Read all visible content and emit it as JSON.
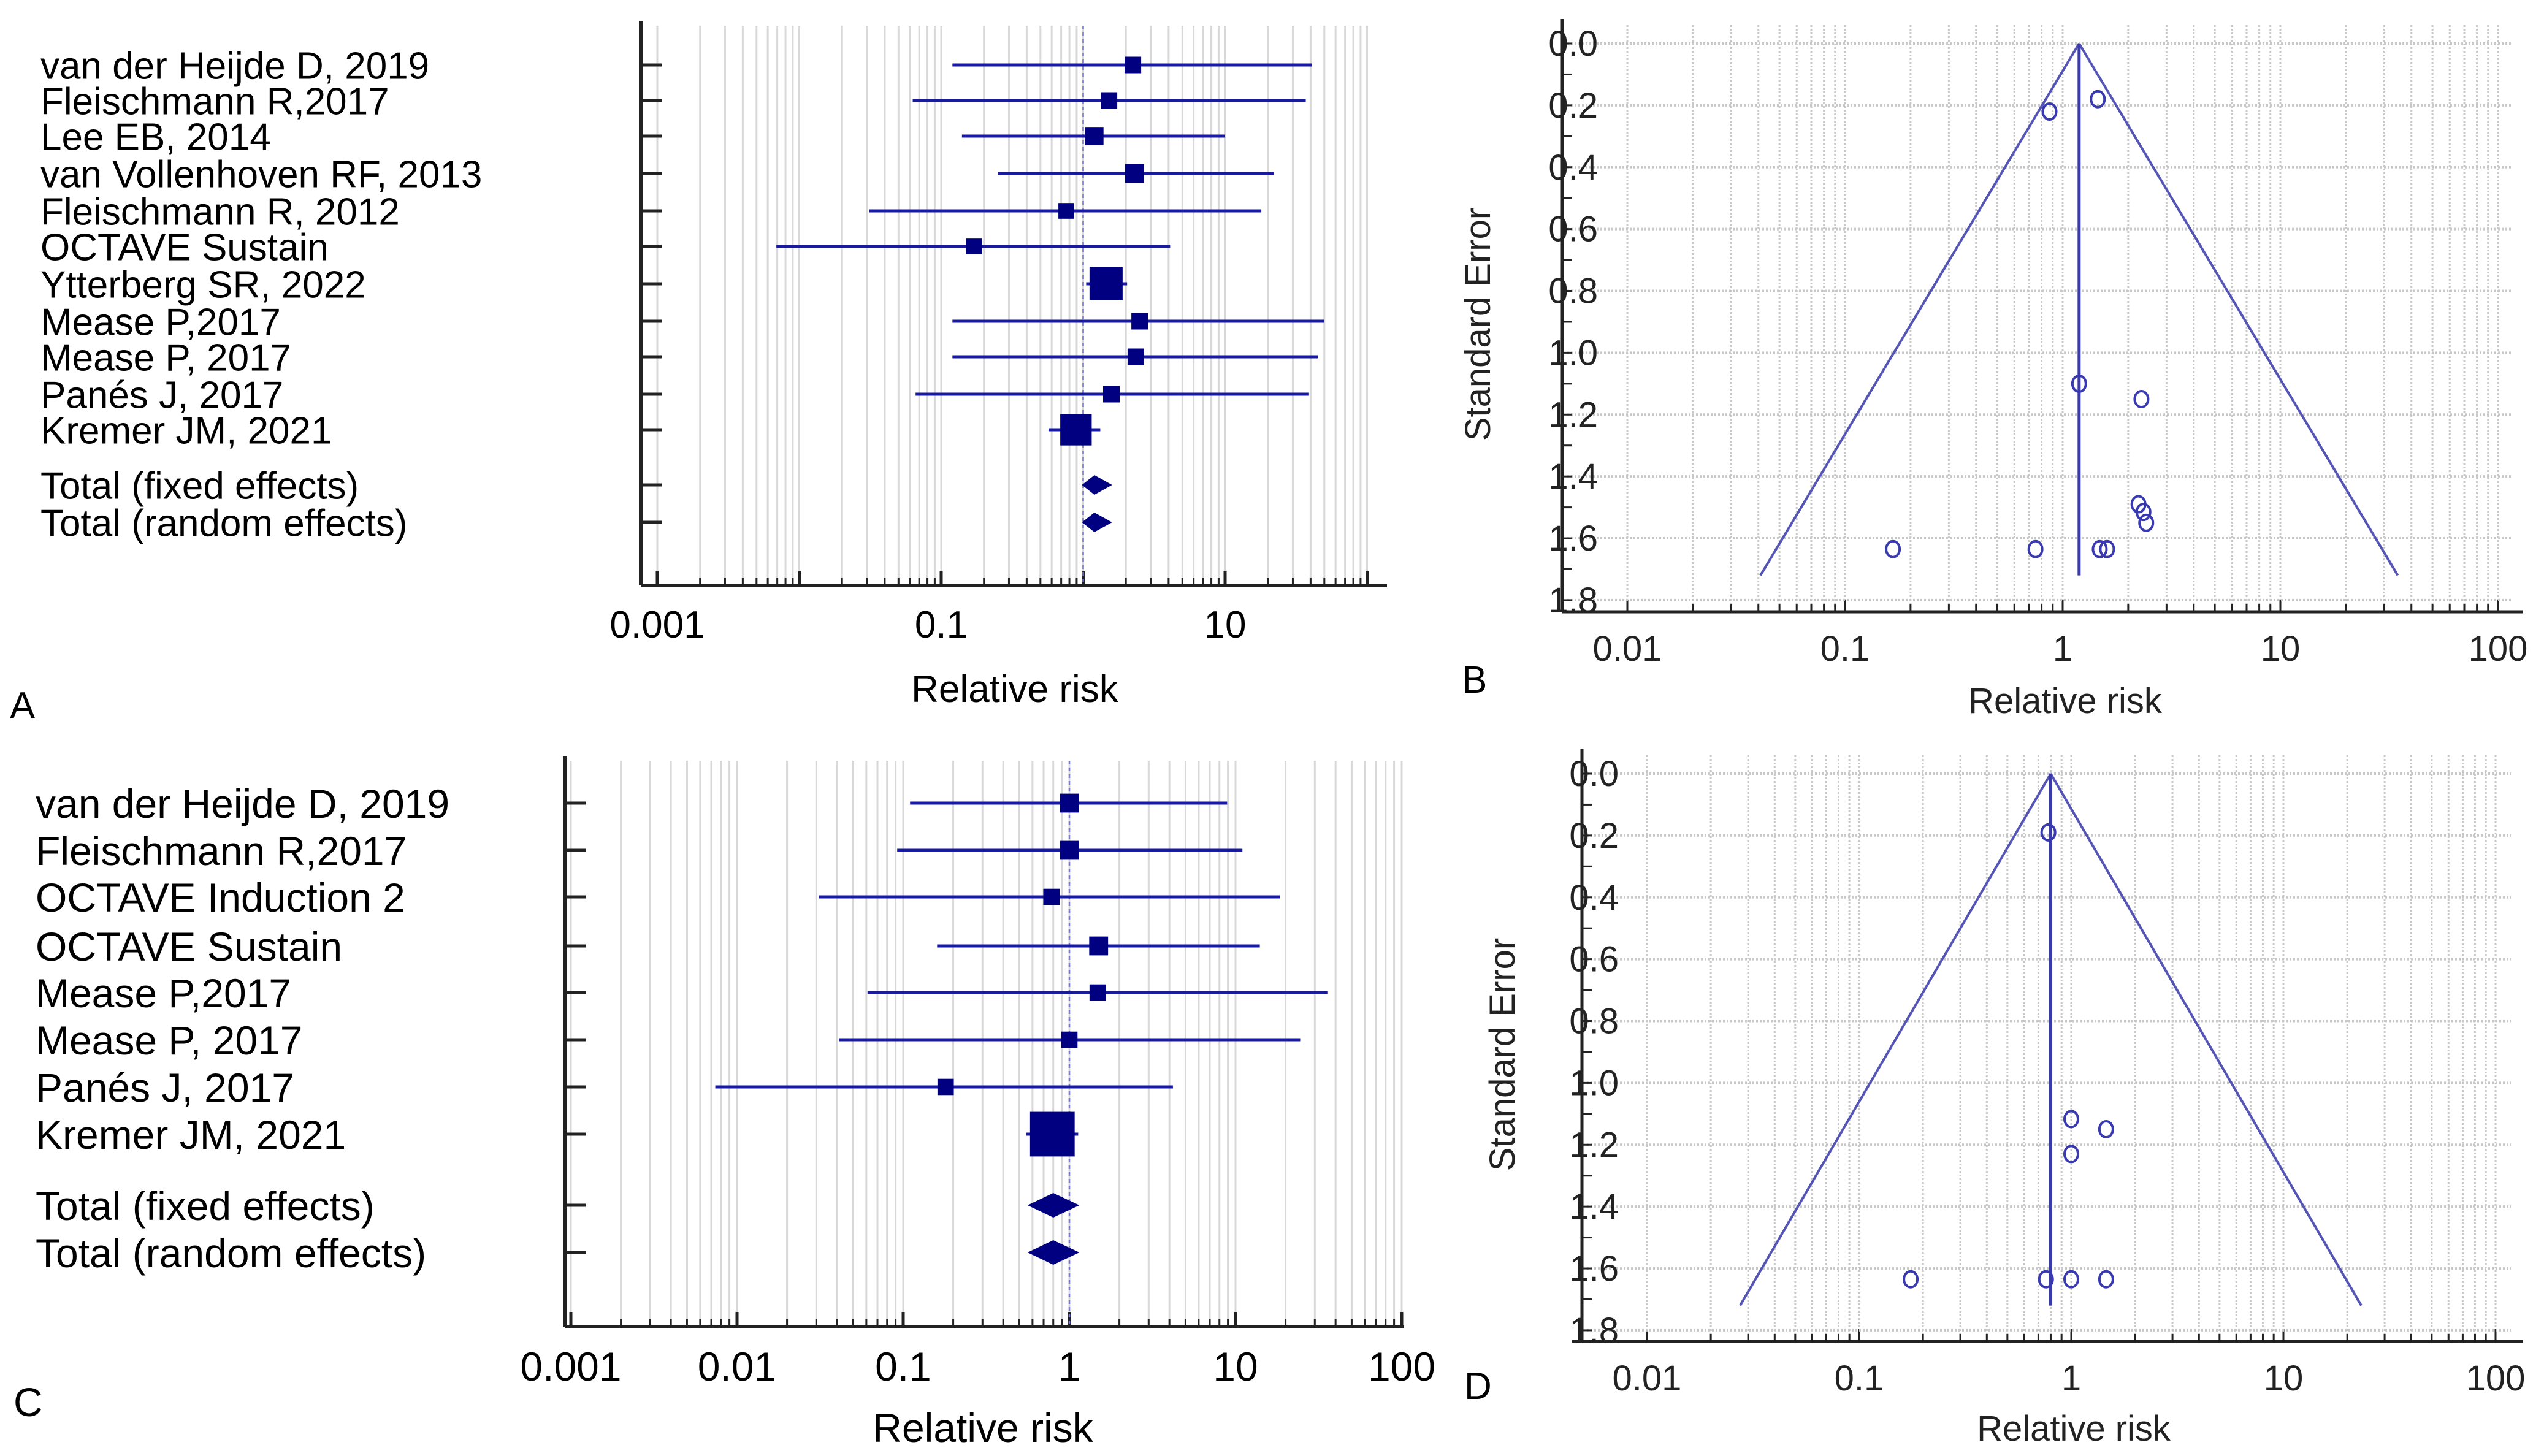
{
  "colors": {
    "forest_marker": "#000080",
    "forest_line": "#1a1aa0",
    "funnel_line": "#5555b5",
    "grid": "#d8d8d8",
    "axis": "#222222"
  },
  "chart_data": [
    {
      "panel": "A",
      "type": "forest",
      "xlabel": "Relative risk",
      "xscale": "log",
      "xlim": [
        0.001,
        100
      ],
      "xticks": [
        0.001,
        0.01,
        0.1,
        1,
        10,
        100
      ],
      "xtick_labels": [
        "0.001",
        "",
        "0.1",
        "",
        "10",
        ""
      ],
      "reference_line": 1,
      "studies": [
        {
          "label": "van der Heijde D, 2019",
          "rr": 2.24,
          "ci_low": 0.12,
          "ci_high": 41,
          "marker_weight": 1.0
        },
        {
          "label": "Fleischmann R,2017",
          "rr": 1.52,
          "ci_low": 0.063,
          "ci_high": 37,
          "marker_weight": 1.0
        },
        {
          "label": "Lee EB, 2014",
          "rr": 1.2,
          "ci_low": 0.14,
          "ci_high": 10,
          "marker_weight": 1.1
        },
        {
          "label": "van Vollenhoven RF,  2013",
          "rr": 2.3,
          "ci_low": 0.25,
          "ci_high": 22,
          "marker_weight": 1.15
        },
        {
          "label": "Fleischmann R,  2012",
          "rr": 0.76,
          "ci_low": 0.031,
          "ci_high": 18,
          "marker_weight": 0.95
        },
        {
          "label": "OCTAVE Sustain",
          "rr": 0.17,
          "ci_low": 0.0069,
          "ci_high": 4.1,
          "marker_weight": 0.95
        },
        {
          "label": "Ytterberg SR, 2022",
          "rr": 1.45,
          "ci_low": 1.05,
          "ci_high": 2.04,
          "marker_weight": 2.0
        },
        {
          "label": "Mease P,2017",
          "rr": 2.5,
          "ci_low": 0.12,
          "ci_high": 50,
          "marker_weight": 1.0
        },
        {
          "label": "Mease P, 2017",
          "rr": 2.35,
          "ci_low": 0.12,
          "ci_high": 45,
          "marker_weight": 1.0
        },
        {
          "label": "Panés J, 2017",
          "rr": 1.58,
          "ci_low": 0.066,
          "ci_high": 39,
          "marker_weight": 1.0
        },
        {
          "label": "Kremer JM,  2021",
          "rr": 0.89,
          "ci_low": 0.57,
          "ci_high": 1.32,
          "marker_weight": 1.9
        }
      ],
      "totals": [
        {
          "label": "Total (fixed effects)",
          "rr": 1.2,
          "ci_low": 0.98,
          "ci_high": 1.6
        },
        {
          "label": "Total (random effects)",
          "rr": 1.2,
          "ci_low": 0.98,
          "ci_high": 1.6
        }
      ]
    },
    {
      "panel": "B",
      "type": "scatter",
      "subtype": "funnel",
      "xlabel": "Relative risk",
      "ylabel": "Standard Error",
      "xscale": "log",
      "xlim": [
        0.01,
        100
      ],
      "xticks": [
        0.01,
        0.1,
        1,
        10,
        100
      ],
      "xtick_labels": [
        "0.01",
        "0.1",
        "1",
        "10",
        "100"
      ],
      "ylim": [
        0,
        1.8
      ],
      "yticks": [
        0.0,
        0.2,
        0.4,
        0.6,
        0.8,
        1.0,
        1.2,
        1.4,
        1.6,
        1.8
      ],
      "ytick_labels": [
        "0.0",
        "0.2",
        "0.4",
        "0.6",
        "0.8",
        "1.0",
        "1.2",
        "1.4",
        "1.6",
        "1.8"
      ],
      "y_inverted": true,
      "grid": true,
      "pooled_rr": 1.19,
      "funnel_se_max": 1.72,
      "points": [
        {
          "rr": 0.87,
          "se": 0.22
        },
        {
          "rr": 1.45,
          "se": 0.18
        },
        {
          "rr": 1.19,
          "se": 1.1
        },
        {
          "rr": 2.3,
          "se": 1.15
        },
        {
          "rr": 2.23,
          "se": 1.49
        },
        {
          "rr": 2.35,
          "se": 1.515
        },
        {
          "rr": 2.42,
          "se": 1.55
        },
        {
          "rr": 0.166,
          "se": 1.635
        },
        {
          "rr": 0.75,
          "se": 1.635
        },
        {
          "rr": 1.48,
          "se": 1.635
        },
        {
          "rr": 1.6,
          "se": 1.635
        }
      ]
    },
    {
      "panel": "C",
      "type": "forest",
      "xlabel": "Relative risk",
      "xscale": "log",
      "xlim": [
        0.001,
        100
      ],
      "xticks": [
        0.001,
        0.01,
        0.1,
        1,
        10,
        100
      ],
      "xtick_labels": [
        "0.001",
        "0.01",
        "0.1",
        "1",
        "10",
        "100"
      ],
      "reference_line": 1,
      "studies": [
        {
          "label": "van der Heijde D, 2019",
          "rr": 1.0,
          "ci_low": 0.11,
          "ci_high": 8.9,
          "marker_weight": 1.1
        },
        {
          "label": "Fleischmann R,2017",
          "rr": 1.0,
          "ci_low": 0.092,
          "ci_high": 11,
          "marker_weight": 1.1
        },
        {
          "label": "OCTAVE Induction 2",
          "rr": 0.78,
          "ci_low": 0.031,
          "ci_high": 18.5,
          "marker_weight": 0.95
        },
        {
          "label": "OCTAVE Sustain",
          "rr": 1.5,
          "ci_low": 0.16,
          "ci_high": 14,
          "marker_weight": 1.1
        },
        {
          "label": "Mease P,2017",
          "rr": 1.48,
          "ci_low": 0.061,
          "ci_high": 36,
          "marker_weight": 0.95
        },
        {
          "label": "Mease P, 2017",
          "rr": 1.0,
          "ci_low": 0.041,
          "ci_high": 24.5,
          "marker_weight": 0.95
        },
        {
          "label": "Panés J, 2017",
          "rr": 0.18,
          "ci_low": 0.0074,
          "ci_high": 4.2,
          "marker_weight": 0.95
        },
        {
          "label": "Kremer JM,  2021",
          "rr": 0.79,
          "ci_low": 0.55,
          "ci_high": 1.13,
          "marker_weight": 2.6
        }
      ],
      "totals": [
        {
          "label": "Total (fixed effects)",
          "rr": 0.8,
          "ci_low": 0.56,
          "ci_high": 1.15
        },
        {
          "label": "Total (random effects)",
          "rr": 0.8,
          "ci_low": 0.56,
          "ci_high": 1.15
        }
      ]
    },
    {
      "panel": "D",
      "type": "scatter",
      "subtype": "funnel",
      "xlabel": "Relative risk",
      "ylabel": "Standard Error",
      "xscale": "log",
      "xlim": [
        0.01,
        100
      ],
      "xticks": [
        0.01,
        0.1,
        1,
        10,
        100
      ],
      "xtick_labels": [
        "0.01",
        "0.1",
        "1",
        "10",
        "100"
      ],
      "ylim": [
        0,
        1.8
      ],
      "yticks": [
        0.0,
        0.2,
        0.4,
        0.6,
        0.8,
        1.0,
        1.2,
        1.4,
        1.6,
        1.8
      ],
      "ytick_labels": [
        "0.0",
        "0.2",
        "0.4",
        "0.6",
        "0.8",
        "1.0",
        "1.2",
        "1.4",
        "1.6",
        "1.8"
      ],
      "y_inverted": true,
      "grid": true,
      "pooled_rr": 0.8,
      "funnel_se_max": 1.72,
      "points": [
        {
          "rr": 0.78,
          "se": 0.19
        },
        {
          "rr": 1.0,
          "se": 1.117
        },
        {
          "rr": 1.46,
          "se": 1.15
        },
        {
          "rr": 1.0,
          "se": 1.23
        },
        {
          "rr": 0.175,
          "se": 1.635
        },
        {
          "rr": 0.76,
          "se": 1.635
        },
        {
          "rr": 1.0,
          "se": 1.635
        },
        {
          "rr": 1.46,
          "se": 1.635
        }
      ]
    }
  ]
}
